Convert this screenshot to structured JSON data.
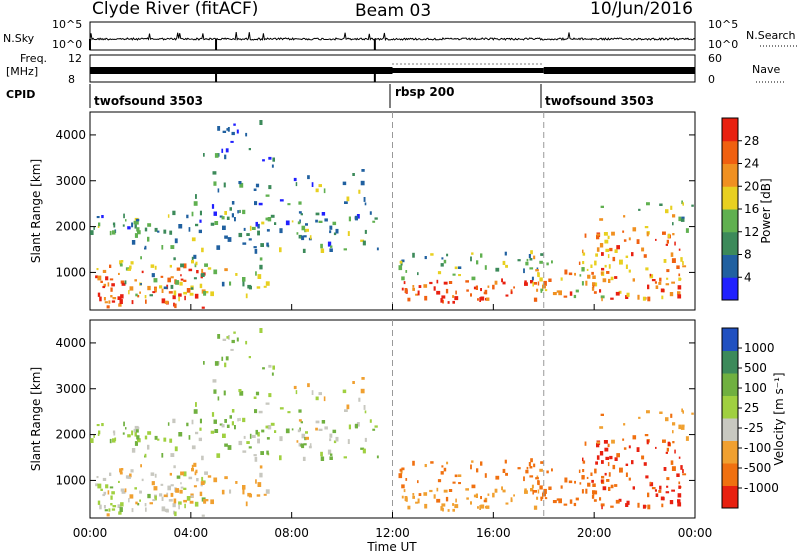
{
  "header": {
    "station": "Clyde River (fitACF)",
    "beam": "Beam 03",
    "date": "10/Jun/2016"
  },
  "noise_panel": {
    "left_label": "N.Sky",
    "right_label": "N.Search",
    "left_ticks": [
      "10^5",
      "10^0"
    ],
    "right_ticks": [
      "10^5",
      "10^0"
    ]
  },
  "freq_panel": {
    "left_label_1": "Freq.",
    "left_label_2": "[MHz]",
    "right_label": "Nave",
    "left_ticks": [
      "12",
      "8"
    ],
    "right_ticks": [
      "60",
      "0"
    ]
  },
  "cpid_panel": {
    "label": "CPID",
    "segments": [
      {
        "name": "twofsound 3503",
        "start_hour": 0,
        "end_hour": 12
      },
      {
        "name": "rbsp 200",
        "start_hour": 12,
        "end_hour": 18
      },
      {
        "name": "twofsound 3503",
        "start_hour": 18,
        "end_hour": 24
      }
    ]
  },
  "x_axis": {
    "label": "Time UT",
    "ticks": [
      "00:00",
      "04:00",
      "08:00",
      "12:00",
      "16:00",
      "20:00",
      "00:00"
    ]
  },
  "power_panel": {
    "ylabel": "Slant Range [km]",
    "yticks": [
      "1000",
      "2000",
      "3000",
      "4000"
    ],
    "colorbar_label": "Power [dB]",
    "colorbar_ticks": [
      "28",
      "24",
      "20",
      "16",
      "12",
      "8",
      "4"
    ],
    "colors": [
      "#2020ff",
      "#2060a0",
      "#3c8a5a",
      "#60b050",
      "#e8d020",
      "#f09020",
      "#f06010",
      "#e82010"
    ]
  },
  "velocity_panel": {
    "ylabel": "Slant Range [km]",
    "yticks": [
      "1000",
      "2000",
      "3000",
      "4000"
    ],
    "colorbar_label": "Velocity [m s⁻¹]",
    "colorbar_ticks": [
      "1000",
      "500",
      "100",
      "25",
      "-25",
      "-100",
      "-500",
      "-1000"
    ],
    "colors": [
      "#2050c0",
      "#3c8a5a",
      "#70b040",
      "#a0d040",
      "#c8c8c0",
      "#f0a030",
      "#f07010",
      "#e82010"
    ]
  },
  "chart_data": {
    "type": "heatmap",
    "title": "Clyde River (fitACF)",
    "subtitle": "Beam 03 10/Jun/2016",
    "xlabel": "Time UT",
    "ylabel": "Slant Range [km]",
    "xlim_hours": [
      0,
      24
    ],
    "ylim_km": [
      180,
      4500
    ],
    "power_db_range": [
      0,
      30
    ],
    "velocity_ms_range": [
      -1200,
      1200
    ],
    "scatter_regions": [
      {
        "t0": 0.0,
        "t1": 4.5,
        "r0": 200,
        "r1": 1100,
        "power": 24,
        "velocity": -30,
        "density": 0.9
      },
      {
        "t0": 0.0,
        "t1": 11.5,
        "r0": 1400,
        "r1": 2300,
        "power": 10,
        "velocity": 0,
        "density": 0.5
      },
      {
        "t0": 1.0,
        "t1": 7.0,
        "r0": 400,
        "r1": 1300,
        "power": 12,
        "velocity": -150,
        "density": 0.55
      },
      {
        "t0": 4.0,
        "t1": 8.5,
        "r0": 1700,
        "r1": 2900,
        "power": 8,
        "velocity": 20,
        "density": 0.35
      },
      {
        "t0": 4.2,
        "t1": 7.3,
        "r0": 2900,
        "r1": 4400,
        "power": 6,
        "velocity": 0,
        "density": 0.25
      },
      {
        "t0": 8.0,
        "t1": 11.2,
        "r0": 1800,
        "r1": 3200,
        "power": 10,
        "velocity": -80,
        "density": 0.3
      },
      {
        "t0": 12.0,
        "t1": 18.0,
        "r0": 300,
        "r1": 800,
        "power": 26,
        "velocity": -200,
        "density": 0.95
      },
      {
        "t0": 12.0,
        "t1": 18.0,
        "r0": 800,
        "r1": 1400,
        "power": 12,
        "velocity": -300,
        "density": 0.6
      },
      {
        "t0": 17.5,
        "t1": 20.5,
        "r0": 400,
        "r1": 1200,
        "power": 20,
        "velocity": -400,
        "density": 0.75
      },
      {
        "t0": 19.5,
        "t1": 23.5,
        "r0": 350,
        "r1": 1900,
        "power": 22,
        "velocity": -600,
        "density": 0.8
      },
      {
        "t0": 20.0,
        "t1": 24.0,
        "r0": 1800,
        "r1": 2500,
        "power": 14,
        "velocity": -200,
        "density": 0.35
      }
    ]
  }
}
